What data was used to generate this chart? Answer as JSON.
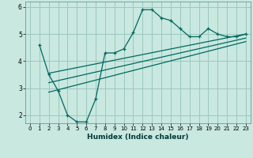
{
  "title": "",
  "xlabel": "Humidex (Indice chaleur)",
  "ylabel": "",
  "bg_color": "#c8e8e0",
  "grid_color": "#9cc8c0",
  "line_color": "#006860",
  "xlim": [
    -0.5,
    23.5
  ],
  "ylim": [
    1.7,
    6.2
  ],
  "xticks": [
    0,
    1,
    2,
    3,
    4,
    5,
    6,
    7,
    8,
    9,
    10,
    11,
    12,
    13,
    14,
    15,
    16,
    17,
    18,
    19,
    20,
    21,
    22,
    23
  ],
  "yticks": [
    2,
    3,
    4,
    5,
    6
  ],
  "main_line_x": [
    1,
    2,
    3,
    4,
    5,
    6,
    7,
    8,
    9,
    10,
    11,
    12,
    13,
    14,
    15,
    16,
    17,
    18,
    19,
    20,
    21,
    22,
    23
  ],
  "main_line_y": [
    4.6,
    3.5,
    2.9,
    2.0,
    1.75,
    1.75,
    2.6,
    4.3,
    4.3,
    4.45,
    5.05,
    5.9,
    5.9,
    5.6,
    5.5,
    5.2,
    4.9,
    4.9,
    5.2,
    5.0,
    4.9,
    4.9,
    5.0
  ],
  "trend1_x": [
    2,
    23
  ],
  "trend1_y": [
    3.55,
    5.0
  ],
  "trend2_x": [
    2,
    23
  ],
  "trend2_y": [
    3.2,
    4.85
  ],
  "trend3_x": [
    2,
    23
  ],
  "trend3_y": [
    2.85,
    4.72
  ]
}
